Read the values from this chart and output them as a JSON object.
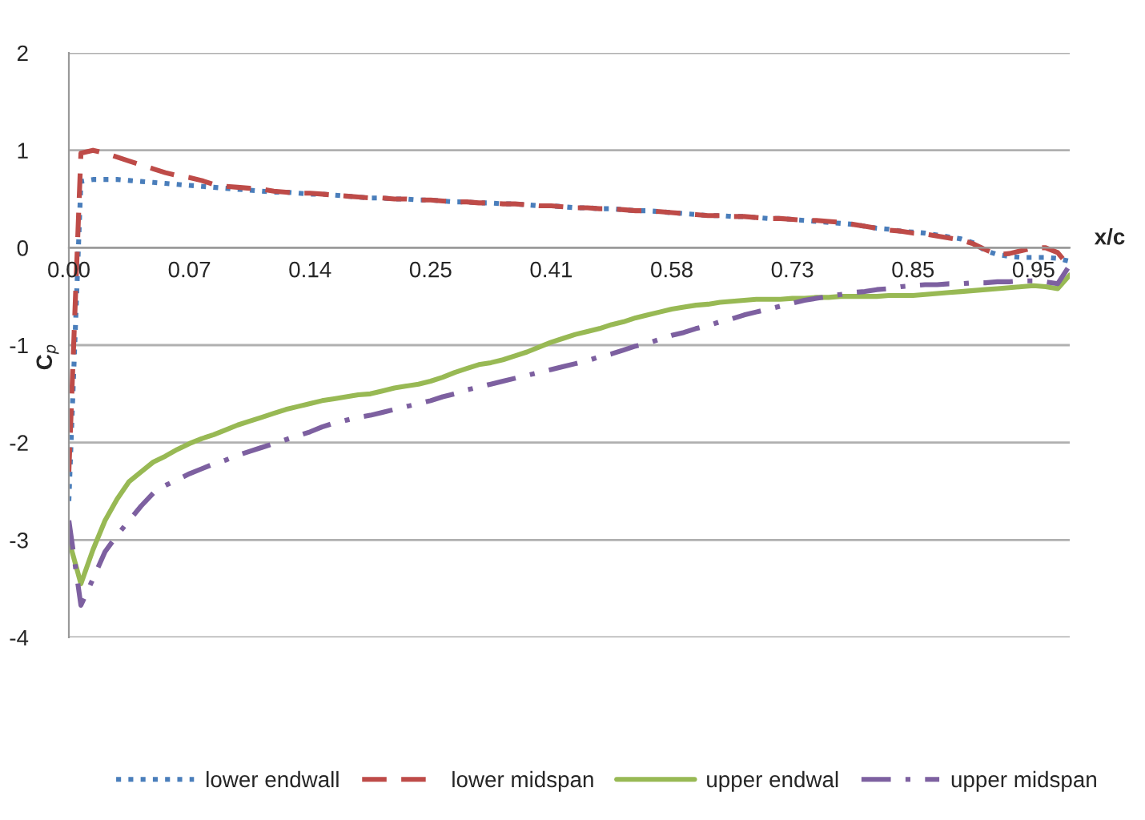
{
  "chart_data": {
    "type": "line",
    "xlabel": "x/c",
    "ylabel": "C$_{p}$",
    "categories": [
      "0.00",
      null,
      null,
      null,
      null,
      null,
      null,
      null,
      null,
      null,
      "0.07",
      null,
      null,
      null,
      null,
      null,
      null,
      null,
      null,
      null,
      "0.14",
      null,
      null,
      null,
      null,
      null,
      null,
      null,
      null,
      null,
      "0.25",
      null,
      null,
      null,
      null,
      null,
      null,
      null,
      null,
      null,
      "0.41",
      null,
      null,
      null,
      null,
      null,
      null,
      null,
      null,
      null,
      "0.58",
      null,
      null,
      null,
      null,
      null,
      null,
      null,
      null,
      null,
      "0.73",
      null,
      null,
      null,
      null,
      null,
      null,
      null,
      null,
      null,
      "0.85",
      null,
      null,
      null,
      null,
      null,
      null,
      null,
      null,
      null,
      "0.95",
      null,
      null,
      null
    ],
    "series": [
      {
        "name": "lower endwall",
        "color": "#4a7ebb",
        "line_style": "dotted",
        "values": [
          -2.6,
          0.68,
          0.7,
          0.7,
          0.7,
          0.69,
          0.68,
          0.67,
          0.66,
          0.65,
          0.64,
          0.63,
          0.62,
          0.61,
          0.6,
          0.59,
          0.58,
          0.57,
          0.57,
          0.56,
          0.55,
          0.55,
          0.54,
          0.53,
          0.52,
          0.51,
          0.51,
          0.5,
          0.5,
          0.49,
          0.49,
          0.48,
          0.47,
          0.47,
          0.46,
          0.46,
          0.45,
          0.45,
          0.44,
          0.43,
          0.43,
          0.42,
          0.41,
          0.41,
          0.4,
          0.4,
          0.39,
          0.38,
          0.38,
          0.37,
          0.36,
          0.35,
          0.34,
          0.33,
          0.33,
          0.32,
          0.32,
          0.31,
          0.3,
          0.3,
          0.29,
          0.28,
          0.27,
          0.26,
          0.25,
          0.24,
          0.22,
          0.2,
          0.19,
          0.17,
          0.16,
          0.15,
          0.13,
          0.11,
          0.09,
          0.05,
          -0.03,
          -0.07,
          -0.09,
          -0.1,
          -0.1,
          -0.1,
          -0.11,
          -0.14
        ]
      },
      {
        "name": "lower midspan",
        "color": "#be4b48",
        "line_style": "dashed",
        "values": [
          -2.3,
          0.97,
          1.0,
          0.97,
          0.93,
          0.89,
          0.85,
          0.81,
          0.77,
          0.74,
          0.72,
          0.69,
          0.65,
          0.63,
          0.62,
          0.61,
          0.6,
          0.58,
          0.57,
          0.56,
          0.56,
          0.55,
          0.54,
          0.53,
          0.52,
          0.51,
          0.51,
          0.5,
          0.5,
          0.49,
          0.49,
          0.48,
          0.47,
          0.47,
          0.46,
          0.46,
          0.45,
          0.45,
          0.44,
          0.43,
          0.43,
          0.42,
          0.41,
          0.41,
          0.4,
          0.4,
          0.39,
          0.38,
          0.38,
          0.37,
          0.36,
          0.35,
          0.34,
          0.33,
          0.33,
          0.32,
          0.32,
          0.31,
          0.3,
          0.3,
          0.29,
          0.28,
          0.28,
          0.27,
          0.26,
          0.24,
          0.22,
          0.2,
          0.18,
          0.17,
          0.15,
          0.14,
          0.12,
          0.1,
          0.08,
          0.04,
          -0.02,
          -0.07,
          -0.06,
          -0.03,
          0.0,
          0.0,
          -0.05,
          -0.2
        ]
      },
      {
        "name": "upper endwal",
        "color": "#98b954",
        "line_style": "solid",
        "values": [
          -3.0,
          -3.45,
          -3.1,
          -2.8,
          -2.58,
          -2.4,
          -2.3,
          -2.2,
          -2.14,
          -2.07,
          -2.01,
          -1.96,
          -1.92,
          -1.87,
          -1.82,
          -1.78,
          -1.74,
          -1.7,
          -1.66,
          -1.63,
          -1.6,
          -1.57,
          -1.55,
          -1.53,
          -1.51,
          -1.5,
          -1.47,
          -1.44,
          -1.42,
          -1.4,
          -1.37,
          -1.33,
          -1.28,
          -1.24,
          -1.2,
          -1.18,
          -1.15,
          -1.11,
          -1.07,
          -1.02,
          -0.97,
          -0.93,
          -0.89,
          -0.86,
          -0.83,
          -0.79,
          -0.76,
          -0.72,
          -0.69,
          -0.66,
          -0.63,
          -0.61,
          -0.59,
          -0.58,
          -0.56,
          -0.55,
          -0.54,
          -0.53,
          -0.53,
          -0.53,
          -0.52,
          -0.52,
          -0.51,
          -0.51,
          -0.5,
          -0.5,
          -0.5,
          -0.5,
          -0.49,
          -0.49,
          -0.49,
          -0.48,
          -0.47,
          -0.46,
          -0.45,
          -0.44,
          -0.43,
          -0.42,
          -0.41,
          -0.4,
          -0.39,
          -0.4,
          -0.42,
          -0.28
        ]
      },
      {
        "name": "upper midspan",
        "color": "#7d60a0",
        "line_style": "dashdot",
        "values": [
          -2.8,
          -3.67,
          -3.4,
          -3.12,
          -2.95,
          -2.8,
          -2.65,
          -2.52,
          -2.44,
          -2.38,
          -2.32,
          -2.27,
          -2.22,
          -2.18,
          -2.13,
          -2.09,
          -2.05,
          -2.01,
          -1.97,
          -1.93,
          -1.89,
          -1.84,
          -1.8,
          -1.77,
          -1.74,
          -1.72,
          -1.69,
          -1.66,
          -1.63,
          -1.6,
          -1.57,
          -1.53,
          -1.5,
          -1.46,
          -1.43,
          -1.4,
          -1.37,
          -1.34,
          -1.31,
          -1.28,
          -1.25,
          -1.22,
          -1.19,
          -1.16,
          -1.12,
          -1.09,
          -1.05,
          -1.01,
          -0.98,
          -0.94,
          -0.9,
          -0.87,
          -0.83,
          -0.8,
          -0.76,
          -0.73,
          -0.69,
          -0.66,
          -0.63,
          -0.6,
          -0.57,
          -0.54,
          -0.52,
          -0.5,
          -0.48,
          -0.46,
          -0.45,
          -0.43,
          -0.42,
          -0.4,
          -0.39,
          -0.38,
          -0.38,
          -0.37,
          -0.37,
          -0.36,
          -0.36,
          -0.35,
          -0.35,
          -0.34,
          -0.34,
          -0.35,
          -0.37,
          -0.18
        ]
      }
    ],
    "ylim": [
      -4,
      2
    ],
    "yticks": [
      -4,
      -3,
      -2,
      -1,
      0,
      1,
      2
    ],
    "grid": "y",
    "legend": "bottom",
    "marker": "none"
  }
}
